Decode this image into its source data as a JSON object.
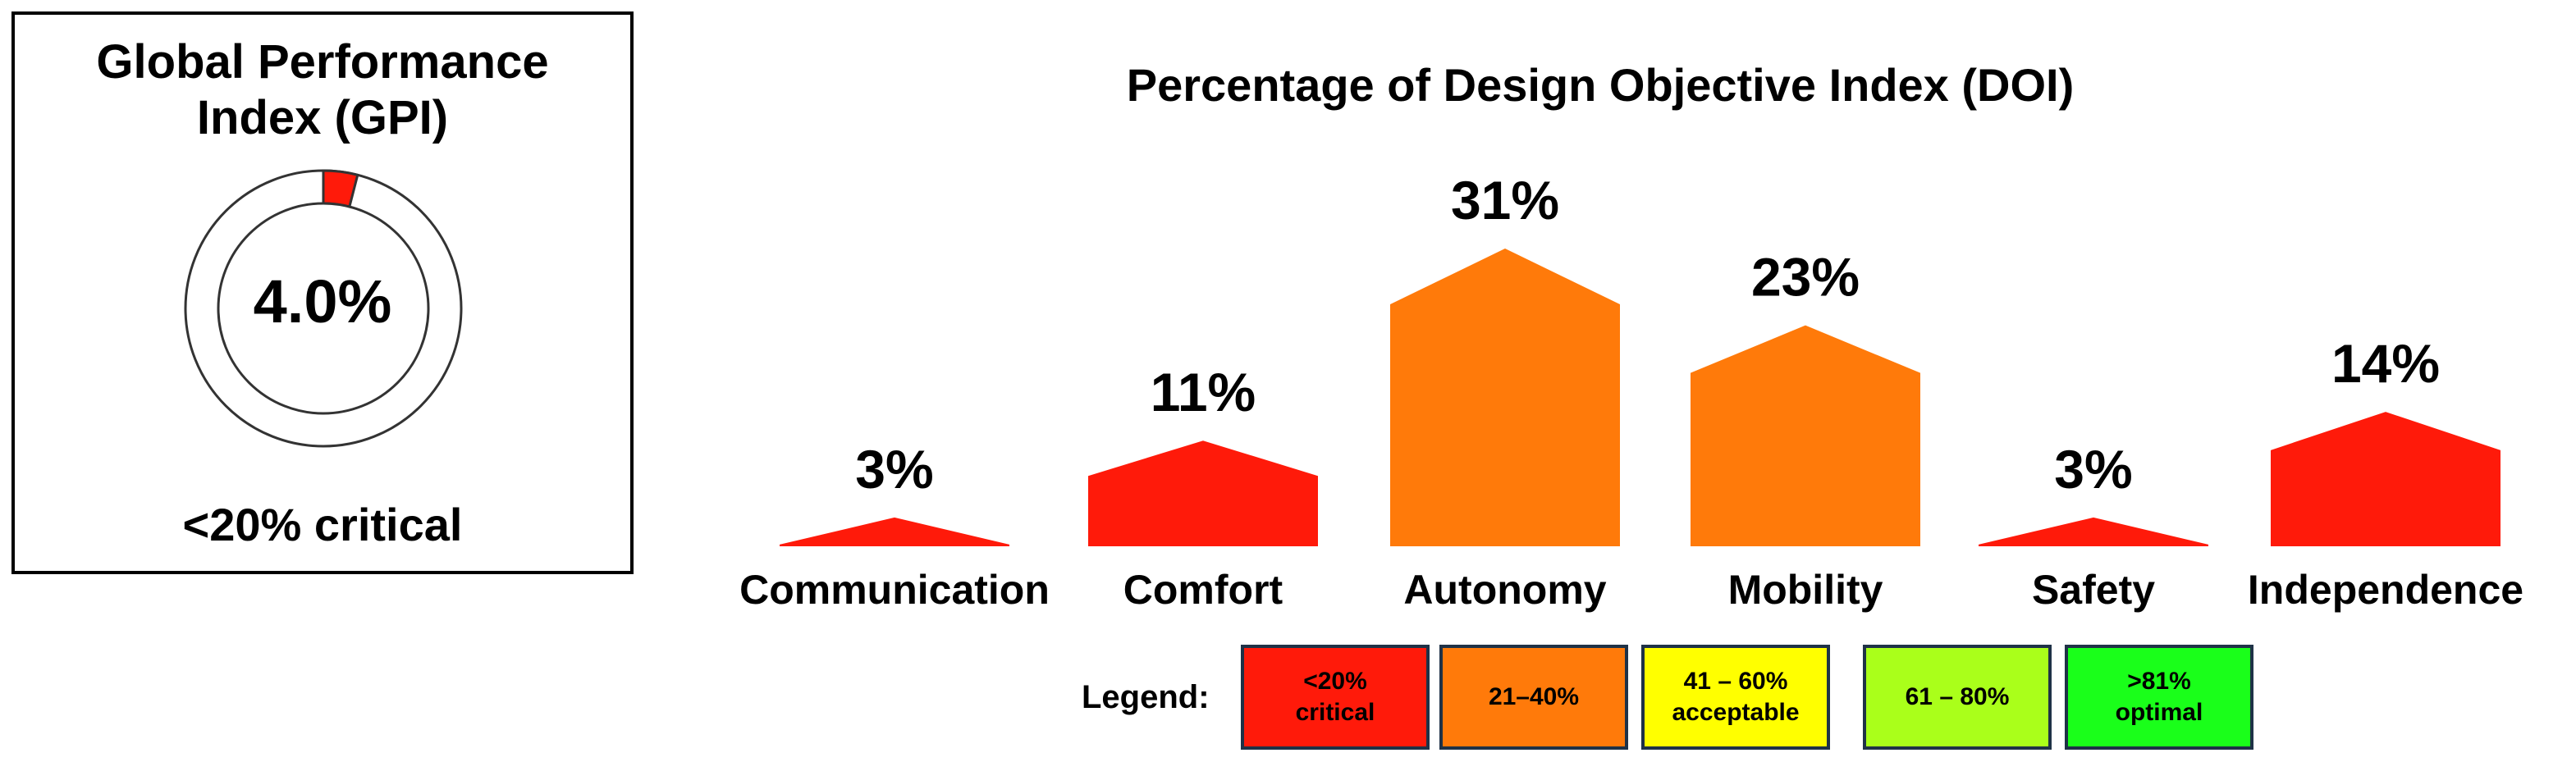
{
  "gpi": {
    "title_line1": "Global Performance",
    "title_line2": "Index (GPI)",
    "value": "4.0%",
    "value_pct": 4.0,
    "status": "<20% critical",
    "fill_color": "#ff1a0a"
  },
  "chart_data": {
    "type": "bar",
    "title": "Percentage of Design Objective Index (DOI)",
    "categories": [
      "Communication",
      "Comfort",
      "Autonomy",
      "Mobility",
      "Safety",
      "Independence"
    ],
    "values": [
      3,
      11,
      31,
      23,
      3,
      14
    ],
    "value_labels": [
      "3%",
      "11%",
      "31%",
      "23%",
      "3%",
      "14%"
    ],
    "colors": [
      "#ff1a0a",
      "#ff1a0a",
      "#ff7a0a",
      "#ff7a0a",
      "#ff1a0a",
      "#ff1a0a"
    ],
    "xlabel": "",
    "ylabel": "",
    "ylim": [
      0,
      35
    ]
  },
  "legend": {
    "label": "Legend:",
    "items": [
      {
        "line1": "<20%",
        "line2": "critical",
        "color": "#ff1a0a"
      },
      {
        "line1": "21–40%",
        "line2": "",
        "color": "#ff7a0a"
      },
      {
        "line1": "41 – 60%",
        "line2": "acceptable",
        "color": "#ffff00"
      },
      {
        "line1": "61 – 80%",
        "line2": "",
        "color": "#aaff1a"
      },
      {
        "line1": ">81%",
        "line2": "optimal",
        "color": "#1aff1a"
      }
    ]
  }
}
